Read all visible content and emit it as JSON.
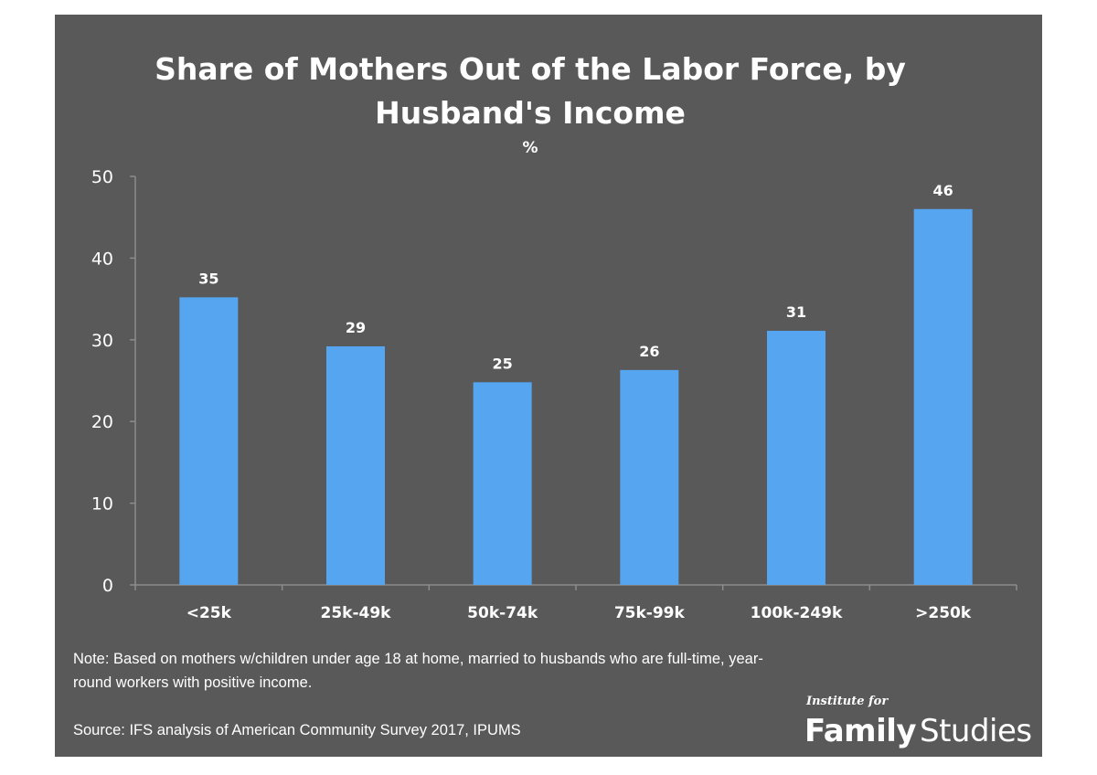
{
  "chart_data": {
    "type": "bar",
    "title_line1": "Share of Mothers Out of the Labor Force, by",
    "title_line2": "Husband's Income",
    "ylabel": "%",
    "xlabel": "",
    "categories": [
      "<25k",
      "25k-49k",
      "50k-74k",
      "75k-99k",
      "100k-249k",
      ">250k"
    ],
    "values": [
      35.2,
      29.2,
      24.8,
      26.3,
      31.1,
      46.0
    ],
    "data_labels": [
      "35",
      "29",
      "25",
      "26",
      "31",
      "46"
    ],
    "ylim": [
      0,
      50
    ],
    "yticks": [
      "0",
      "10",
      "20",
      "30",
      "40",
      "50"
    ],
    "grid": false,
    "legend": "none",
    "colors": {
      "background": "#595959",
      "bar": "#55A5F0",
      "axis": "#8c8c8c",
      "text": "#ffffff"
    }
  },
  "note": "Note: Based on mothers w/children under age 18 at home, married to husbands who are full-time, year-round workers with positive income.",
  "source": "Source: IFS analysis of American Community Survey 2017, IPUMS",
  "logo": {
    "small": "Institute for",
    "family": "Family",
    "studies": "Studies"
  }
}
